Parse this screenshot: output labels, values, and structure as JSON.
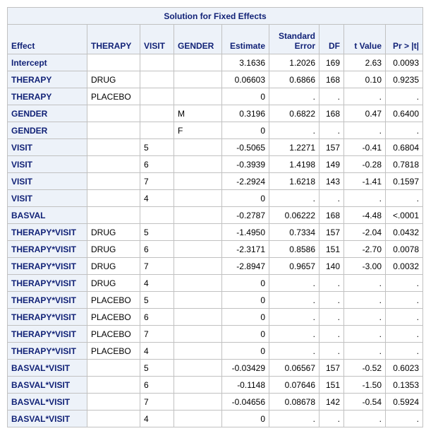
{
  "table": {
    "title": "Solution for Fixed Effects",
    "columns": [
      "Effect",
      "THERAPY",
      "VISIT",
      "GENDER",
      "Estimate",
      "Standard Error",
      "DF",
      "t Value",
      "Pr > |t|"
    ],
    "rows": [
      [
        "Intercept",
        null,
        null,
        null,
        "3.1636",
        "1.2026",
        "169",
        "2.63",
        "0.0093"
      ],
      [
        "THERAPY",
        "DRUG",
        null,
        null,
        "0.06603",
        "0.6866",
        "168",
        "0.10",
        "0.9235"
      ],
      [
        "THERAPY",
        "PLACEBO",
        null,
        null,
        "0",
        ".",
        ".",
        ".",
        "."
      ],
      [
        "GENDER",
        null,
        null,
        "M",
        "0.3196",
        "0.6822",
        "168",
        "0.47",
        "0.6400"
      ],
      [
        "GENDER",
        null,
        null,
        "F",
        "0",
        ".",
        ".",
        ".",
        "."
      ],
      [
        "VISIT",
        null,
        "5",
        null,
        "-0.5065",
        "1.2271",
        "157",
        "-0.41",
        "0.6804"
      ],
      [
        "VISIT",
        null,
        "6",
        null,
        "-0.3939",
        "1.4198",
        "149",
        "-0.28",
        "0.7818"
      ],
      [
        "VISIT",
        null,
        "7",
        null,
        "-2.2924",
        "1.6218",
        "143",
        "-1.41",
        "0.1597"
      ],
      [
        "VISIT",
        null,
        "4",
        null,
        "0",
        ".",
        ".",
        ".",
        "."
      ],
      [
        "BASVAL",
        null,
        null,
        null,
        "-0.2787",
        "0.06222",
        "168",
        "-4.48",
        "<.0001"
      ],
      [
        "THERAPY*VISIT",
        "DRUG",
        "5",
        null,
        "-1.4950",
        "0.7334",
        "157",
        "-2.04",
        "0.0432"
      ],
      [
        "THERAPY*VISIT",
        "DRUG",
        "6",
        null,
        "-2.3171",
        "0.8586",
        "151",
        "-2.70",
        "0.0078"
      ],
      [
        "THERAPY*VISIT",
        "DRUG",
        "7",
        null,
        "-2.8947",
        "0.9657",
        "140",
        "-3.00",
        "0.0032"
      ],
      [
        "THERAPY*VISIT",
        "DRUG",
        "4",
        null,
        "0",
        ".",
        ".",
        ".",
        "."
      ],
      [
        "THERAPY*VISIT",
        "PLACEBO",
        "5",
        null,
        "0",
        ".",
        ".",
        ".",
        "."
      ],
      [
        "THERAPY*VISIT",
        "PLACEBO",
        "6",
        null,
        "0",
        ".",
        ".",
        ".",
        "."
      ],
      [
        "THERAPY*VISIT",
        "PLACEBO",
        "7",
        null,
        "0",
        ".",
        ".",
        ".",
        "."
      ],
      [
        "THERAPY*VISIT",
        "PLACEBO",
        "4",
        null,
        "0",
        ".",
        ".",
        ".",
        "."
      ],
      [
        "BASVAL*VISIT",
        null,
        "5",
        null,
        "-0.03429",
        "0.06567",
        "157",
        "-0.52",
        "0.6023"
      ],
      [
        "BASVAL*VISIT",
        null,
        "6",
        null,
        "-0.1148",
        "0.07646",
        "151",
        "-1.50",
        "0.1353"
      ],
      [
        "BASVAL*VISIT",
        null,
        "7",
        null,
        "-0.04656",
        "0.08678",
        "142",
        "-0.54",
        "0.5924"
      ],
      [
        "BASVAL*VISIT",
        null,
        "4",
        null,
        "0",
        ".",
        ".",
        ".",
        "."
      ]
    ]
  }
}
